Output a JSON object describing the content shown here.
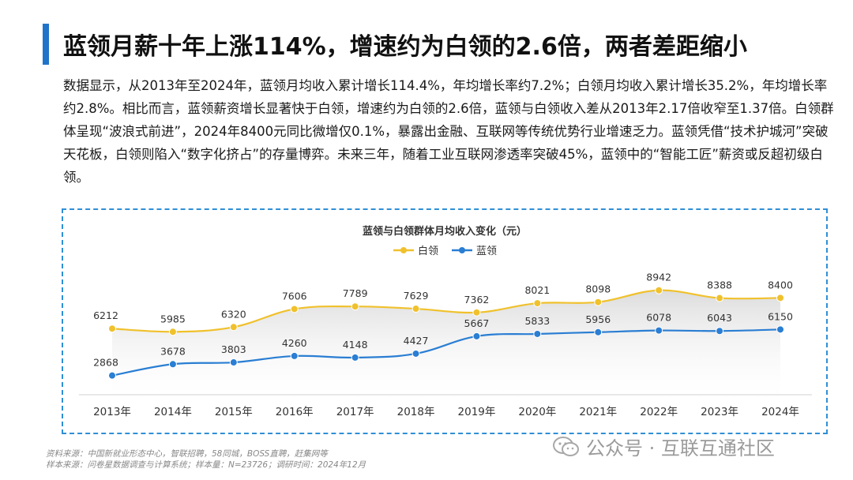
{
  "header": {
    "title": "蓝领月薪十年上涨114%，增速约为白领的2.6倍，两者差距缩小"
  },
  "description": "数据显示，从2013年至2024年，蓝领月均收入累计增长114.4%，年均增长率约7.2%；白领月均收入累计增长35.2%，年均增长率约2.8%。相比而言，蓝领薪资增长显著快于白领，增速约为白领的2.6倍，蓝领与白领收入差从2013年2.17倍收窄至1.37倍。白领群体呈现“波浪式前进”，2024年8400元同比微增仅0.1%，暴露出金融、互联网等传统优势行业增速乏力。蓝领凭借“技术护城河”突破天花板，白领则陷入“数字化挤占”的存量博弈。未来三年，随着工业互联网渗透率突破45%，蓝领中的“智能工匠”薪资或反超初级白领。",
  "chart_data": {
    "type": "line",
    "title": "蓝领与白领群体月均收入变化（元）",
    "categories": [
      "2013年",
      "2014年",
      "2015年",
      "2016年",
      "2017年",
      "2018年",
      "2019年",
      "2020年",
      "2021年",
      "2022年",
      "2023年",
      "2024年"
    ],
    "series": [
      {
        "name": "白领",
        "color": "#f0c12c",
        "values": [
          6212,
          5985,
          6320,
          7606,
          7789,
          7629,
          7362,
          8021,
          8098,
          8942,
          8388,
          8400
        ]
      },
      {
        "name": "蓝领",
        "color": "#2a7ed3",
        "values": [
          2868,
          3678,
          3803,
          4260,
          4148,
          4427,
          5667,
          5833,
          5956,
          6078,
          6043,
          6150
        ]
      }
    ],
    "legend_position": "top-center",
    "ylim": [
      0,
      10000
    ]
  },
  "footer": {
    "source_line": "资料来源：中国新就业形态中心，智联招聘，58同城，BOSS直聘，赶集网等",
    "sample_line": "样本来源：问卷星数据调查与计算系统；样本量：N=23726；调研时间：2024年12月"
  },
  "watermark": {
    "text": "公众号 · 互联互通社区"
  }
}
